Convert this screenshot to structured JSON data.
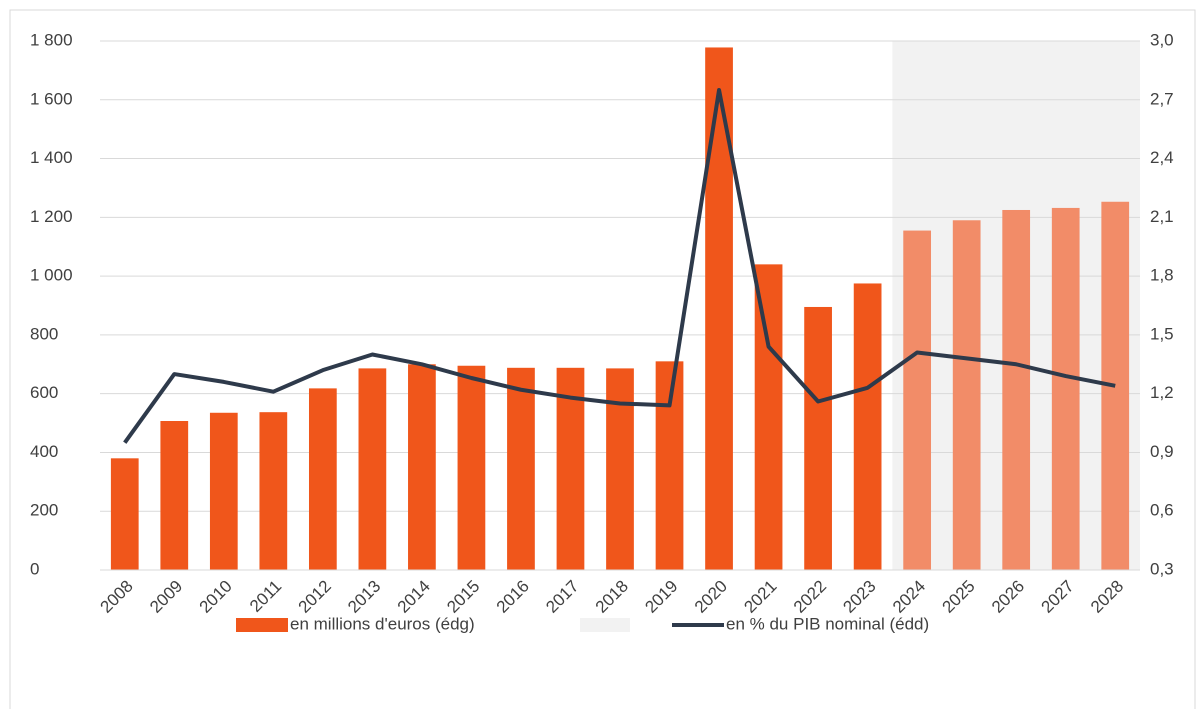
{
  "chart_data": {
    "type": "bar_line",
    "categories": [
      "2008",
      "2009",
      "2010",
      "2011",
      "2012",
      "2013",
      "2014",
      "2015",
      "2016",
      "2017",
      "2018",
      "2019",
      "2020",
      "2021",
      "2022",
      "2023",
      "2024",
      "2025",
      "2026",
      "2027",
      "2028"
    ],
    "series": [
      {
        "name": "en millions d'euros (édg)",
        "type": "bar",
        "color": "#f0561b",
        "forecast_color": "#f28c68",
        "values": [
          380,
          507,
          535,
          537,
          618,
          686,
          700,
          695,
          688,
          688,
          686,
          710,
          1778,
          1040,
          895,
          975,
          1155,
          1190,
          1225,
          1232,
          1253
        ]
      },
      {
        "name": "en % du PIB nominal (édd)",
        "type": "line",
        "axis": "y2",
        "color": "#2e3a4b",
        "values": [
          0.95,
          1.3,
          1.26,
          1.21,
          1.32,
          1.4,
          1.35,
          1.28,
          1.22,
          1.18,
          1.15,
          1.14,
          2.75,
          1.44,
          1.16,
          1.23,
          1.41,
          1.38,
          1.35,
          1.29,
          1.24
        ]
      }
    ],
    "shade": {
      "from": "2024",
      "to": "2028",
      "color": "#f2f2f2"
    },
    "ylim": [
      0,
      1800
    ],
    "yticks": [
      0,
      200,
      400,
      600,
      800,
      {
        "value": 1000,
        "label": "1 000"
      },
      {
        "value": 1200,
        "label": "1 200"
      },
      {
        "value": 1400,
        "label": "1 400"
      },
      {
        "value": 1600,
        "label": "1 600"
      },
      {
        "value": 1800,
        "label": "1 800"
      }
    ],
    "y2lim": [
      0.3,
      3.0
    ],
    "y2ticks": [
      {
        "value": 0.3,
        "label": "0,3"
      },
      {
        "value": 0.6,
        "label": "0,6"
      },
      {
        "value": 0.9,
        "label": "0,9"
      },
      {
        "value": 1.2,
        "label": "1,2"
      },
      {
        "value": 1.5,
        "label": "1,5"
      },
      {
        "value": 1.8,
        "label": "1,8"
      },
      {
        "value": 2.1,
        "label": "2,1"
      },
      {
        "value": 2.4,
        "label": "2,4"
      },
      {
        "value": 2.7,
        "label": "2,7"
      },
      {
        "value": 3.0,
        "label": "3,0"
      }
    ],
    "grid": true,
    "legend": "bottom"
  }
}
